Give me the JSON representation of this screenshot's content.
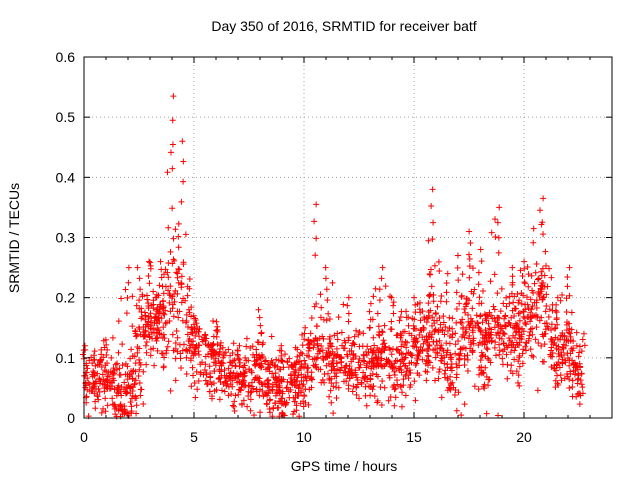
{
  "chart_data": {
    "type": "scatter",
    "title": "Day 350 of 2016, SRMTID for receiver batf",
    "xlabel": "GPS time / hours",
    "ylabel": "SRMTID / TECUs",
    "xlim": [
      0,
      24
    ],
    "ylim": [
      0,
      0.6
    ],
    "xticks": [
      0,
      5,
      10,
      15,
      20
    ],
    "xtick_labels": [
      "0",
      "5",
      "10",
      "15",
      "20"
    ],
    "yticks": [
      0,
      0.1,
      0.2,
      0.3,
      0.4,
      0.5,
      0.6
    ],
    "ytick_labels": [
      "0",
      "0.1",
      "0.2",
      "0.3",
      "0.4",
      "0.5",
      "0.6"
    ],
    "grid": true,
    "marker": "+",
    "series_color": "#ff0000",
    "series": [
      {
        "name": "SRMTID",
        "x_range": [
          0,
          22.7
        ],
        "note": "dense scatter of ~2000 points; envelope values below (baseline, typical spread, peak)",
        "envelope": [
          {
            "x": 0.0,
            "base": 0.06,
            "spread": 0.04,
            "peak": 0.12
          },
          {
            "x": 1.0,
            "base": 0.06,
            "spread": 0.04,
            "peak": 0.13
          },
          {
            "x": 2.0,
            "base": 0.04,
            "spread": 0.05,
            "peak": 0.25
          },
          {
            "x": 2.5,
            "base": 0.1,
            "spread": 0.06,
            "peak": 0.25
          },
          {
            "x": 3.0,
            "base": 0.16,
            "spread": 0.05,
            "peak": 0.26
          },
          {
            "x": 3.5,
            "base": 0.15,
            "spread": 0.05,
            "peak": 0.26
          },
          {
            "x": 4.0,
            "base": 0.2,
            "spread": 0.1,
            "peak": 0.535
          },
          {
            "x": 4.5,
            "base": 0.18,
            "spread": 0.08,
            "peak": 0.46
          },
          {
            "x": 5.0,
            "base": 0.11,
            "spread": 0.05,
            "peak": 0.17
          },
          {
            "x": 6.0,
            "base": 0.09,
            "spread": 0.04,
            "peak": 0.16
          },
          {
            "x": 7.0,
            "base": 0.06,
            "spread": 0.03,
            "peak": 0.12
          },
          {
            "x": 8.0,
            "base": 0.07,
            "spread": 0.04,
            "peak": 0.18
          },
          {
            "x": 9.0,
            "base": 0.05,
            "spread": 0.04,
            "peak": 0.12
          },
          {
            "x": 10.0,
            "base": 0.07,
            "spread": 0.04,
            "peak": 0.15
          },
          {
            "x": 10.5,
            "base": 0.12,
            "spread": 0.06,
            "peak": 0.355
          },
          {
            "x": 11.0,
            "base": 0.1,
            "spread": 0.05,
            "peak": 0.25
          },
          {
            "x": 12.0,
            "base": 0.09,
            "spread": 0.04,
            "peak": 0.2
          },
          {
            "x": 13.0,
            "base": 0.08,
            "spread": 0.04,
            "peak": 0.19
          },
          {
            "x": 13.5,
            "base": 0.1,
            "spread": 0.05,
            "peak": 0.25
          },
          {
            "x": 14.0,
            "base": 0.09,
            "spread": 0.04,
            "peak": 0.2
          },
          {
            "x": 15.0,
            "base": 0.1,
            "spread": 0.05,
            "peak": 0.2
          },
          {
            "x": 15.8,
            "base": 0.15,
            "spread": 0.06,
            "peak": 0.38
          },
          {
            "x": 16.5,
            "base": 0.11,
            "spread": 0.05,
            "peak": 0.24
          },
          {
            "x": 17.0,
            "base": 0.1,
            "spread": 0.06,
            "peak": 0.27
          },
          {
            "x": 17.5,
            "base": 0.15,
            "spread": 0.06,
            "peak": 0.31
          },
          {
            "x": 18.0,
            "base": 0.12,
            "spread": 0.06,
            "peak": 0.28
          },
          {
            "x": 18.8,
            "base": 0.14,
            "spread": 0.06,
            "peak": 0.35
          },
          {
            "x": 19.5,
            "base": 0.13,
            "spread": 0.05,
            "peak": 0.25
          },
          {
            "x": 20.0,
            "base": 0.16,
            "spread": 0.05,
            "peak": 0.26
          },
          {
            "x": 20.8,
            "base": 0.2,
            "spread": 0.07,
            "peak": 0.365
          },
          {
            "x": 21.5,
            "base": 0.1,
            "spread": 0.05,
            "peak": 0.2
          },
          {
            "x": 22.0,
            "base": 0.12,
            "spread": 0.05,
            "peak": 0.25
          },
          {
            "x": 22.7,
            "base": 0.06,
            "spread": 0.04,
            "peak": 0.14
          }
        ]
      }
    ]
  }
}
